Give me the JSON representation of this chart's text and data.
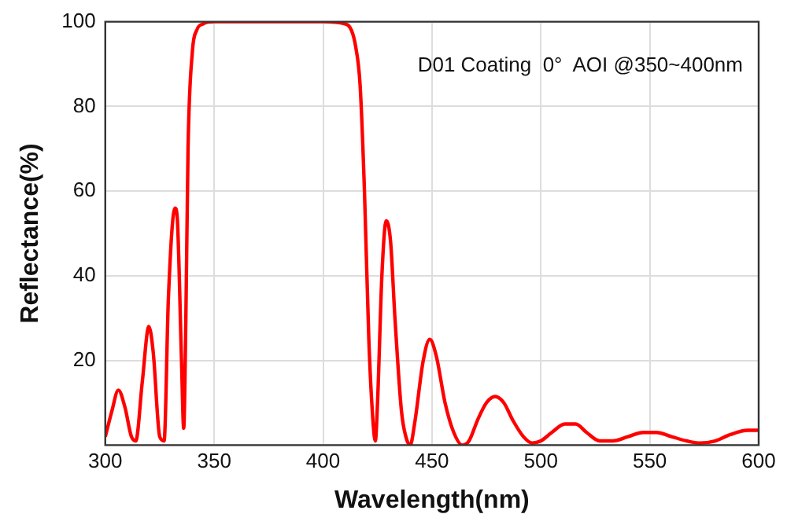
{
  "chart_data": {
    "type": "line",
    "xlabel": "Wavelength(nm)",
    "ylabel": "Reflectance(%)",
    "annotations": [
      "D01 Coating  0°  AOI @350~400nm"
    ],
    "xlim": [
      300,
      600
    ],
    "xticks": [
      300,
      350,
      400,
      450,
      500,
      550,
      600
    ],
    "ylim": [
      0,
      100
    ],
    "yticks": [
      20,
      40,
      60,
      80,
      100
    ],
    "grid": true,
    "legend": false,
    "marker": "none",
    "line_style": "solid",
    "series": [
      {
        "color": "#ff0000",
        "x": [
          300,
          303,
          306,
          309,
          312,
          314,
          317,
          320,
          322,
          325,
          327,
          329,
          332,
          333,
          335,
          336,
          337,
          338,
          340,
          342,
          345,
          350,
          400,
          410,
          413,
          415,
          417,
          419,
          421,
          423,
          424,
          425,
          427,
          429,
          431,
          433,
          436,
          438,
          440,
          442,
          446,
          449,
          452,
          456,
          460,
          464,
          467,
          471,
          475,
          479,
          483,
          487,
          492,
          496,
          500,
          505,
          511,
          516,
          521,
          527,
          533,
          540,
          547,
          553,
          560,
          567,
          573,
          580,
          587,
          595,
          600
        ],
        "values": [
          2,
          8,
          13,
          9,
          2,
          1,
          15,
          28,
          22,
          2,
          1,
          35,
          56,
          54,
          20,
          4,
          30,
          70,
          93,
          98,
          99.5,
          100,
          100,
          99.5,
          98,
          94,
          85,
          60,
          25,
          5,
          1,
          10,
          40,
          53,
          48,
          30,
          8,
          2,
          0,
          5,
          20,
          25,
          21,
          10,
          3,
          0,
          1,
          6,
          10,
          11.5,
          10,
          6,
          2,
          0.5,
          1,
          3,
          5,
          5,
          3,
          1,
          1,
          2,
          3,
          3,
          2,
          1,
          0.5,
          1,
          2.5,
          3.5,
          3.5
        ]
      }
    ]
  }
}
